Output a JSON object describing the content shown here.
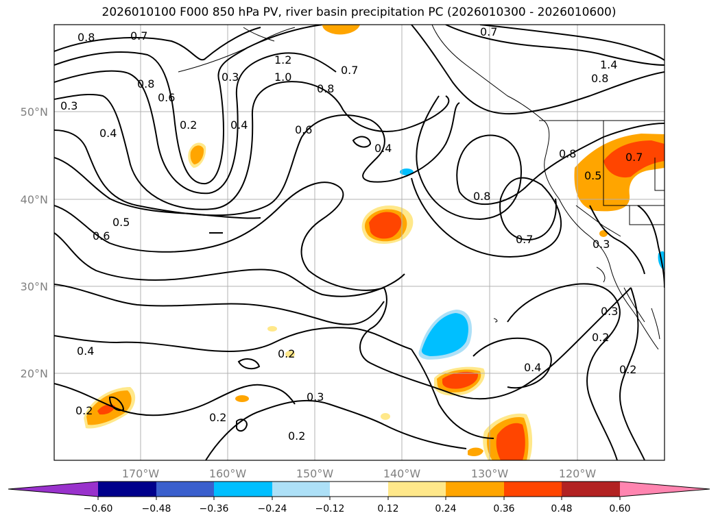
{
  "title": "2026010100 F000 850 hPa PV, river basin precipitation PC (2026010300 - 2026010600)",
  "lon_ticks": [
    "170°W",
    "160°W",
    "150°W",
    "140°W",
    "130°W",
    "120°W"
  ],
  "lat_ticks": [
    "50°N",
    "40°N",
    "30°N",
    "20°N"
  ],
  "contour_labels": [
    "0.8",
    "0.7",
    "1.2",
    "1.0",
    "0.8",
    "0.7",
    "0.7",
    "1.4",
    "0.8",
    "0.3",
    "0.8",
    "0.6",
    "0.3",
    "0.2",
    "0.4",
    "0.4",
    "0.6",
    "0.4",
    "0.8",
    "0.5",
    "0.7",
    "0.8",
    "0.7",
    "0.3",
    "0.6",
    "0.5",
    "0.4",
    "0.2",
    "0.2",
    "0.3",
    "0.2",
    "0.2",
    "0.4",
    "0.3",
    "0.2",
    "0.2"
  ],
  "colorbar": {
    "ticks": [
      "−0.60",
      "−0.48",
      "−0.36",
      "−0.24",
      "−0.12",
      "0.12",
      "0.24",
      "0.36",
      "0.48",
      "0.60"
    ],
    "colors": [
      "#9932CC",
      "#00008B",
      "#3A5FCD",
      "#00BFFF",
      "#ADE0F7",
      "#FFFFFF",
      "#FFE88A",
      "#FFA500",
      "#FF4500",
      "#B22222",
      "#FF85B0"
    ]
  }
}
